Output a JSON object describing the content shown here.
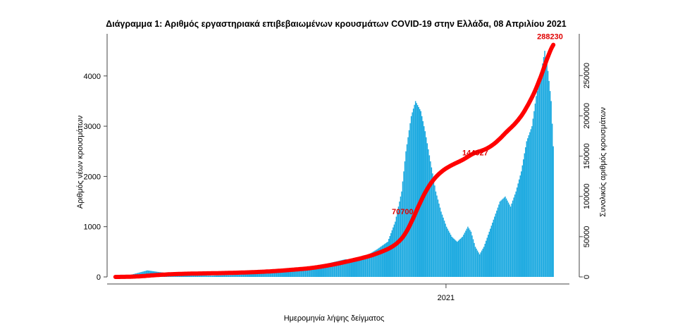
{
  "chart_data": {
    "type": "bar",
    "title": "Διάγραμμα 1: Αριθμός εργαστηριακά επιβεβαιωμένων κρουσμάτων COVID-19 στην Ελλάδα, 08 Απριλίου 2021",
    "xlabel": "Ημερομηνία λήψης δείγματος",
    "ylabel": "Αριθμός νέων κρουσμάτων",
    "y2label": "Συνολικός αριθμός κρουσμάτων",
    "x_tick_labels": [
      "2021"
    ],
    "year_tick_day": 310,
    "ylim": [
      0,
      4600
    ],
    "y2lim": [
      0,
      287000
    ],
    "yticks": [
      0,
      1000,
      2000,
      3000,
      4000
    ],
    "y2ticks": [
      0,
      50000,
      100000,
      150000,
      200000,
      250000
    ],
    "grid": false,
    "bar_color": "#1aa9e0",
    "line_color": "#ff0000",
    "daily_anchors": [
      [
        0,
        2
      ],
      [
        14,
        40
      ],
      [
        30,
        130
      ],
      [
        40,
        100
      ],
      [
        55,
        60
      ],
      [
        70,
        30
      ],
      [
        90,
        25
      ],
      [
        110,
        40
      ],
      [
        130,
        60
      ],
      [
        150,
        100
      ],
      [
        160,
        120
      ],
      [
        175,
        130
      ],
      [
        185,
        200
      ],
      [
        195,
        250
      ],
      [
        205,
        300
      ],
      [
        215,
        350
      ],
      [
        225,
        350
      ],
      [
        235,
        420
      ],
      [
        245,
        550
      ],
      [
        255,
        700
      ],
      [
        262,
        1100
      ],
      [
        268,
        1700
      ],
      [
        272,
        2500
      ],
      [
        277,
        3200
      ],
      [
        281,
        3500
      ],
      [
        286,
        3300
      ],
      [
        290,
        2900
      ],
      [
        295,
        2300
      ],
      [
        300,
        1700
      ],
      [
        305,
        1300
      ],
      [
        310,
        1000
      ],
      [
        315,
        800
      ],
      [
        320,
        700
      ],
      [
        325,
        800
      ],
      [
        330,
        1000
      ],
      [
        333,
        900
      ],
      [
        337,
        600
      ],
      [
        341,
        450
      ],
      [
        345,
        600
      ],
      [
        350,
        900
      ],
      [
        355,
        1200
      ],
      [
        360,
        1500
      ],
      [
        365,
        1600
      ],
      [
        370,
        1400
      ],
      [
        375,
        1700
      ],
      [
        380,
        2100
      ],
      [
        385,
        2700
      ],
      [
        390,
        3000
      ],
      [
        394,
        3600
      ],
      [
        398,
        4000
      ],
      [
        402,
        4500
      ],
      [
        405,
        4100
      ],
      [
        408,
        3500
      ],
      [
        410,
        2600
      ]
    ],
    "cumulative_labels": [
      {
        "day": 272,
        "value": 70700,
        "text": "70700"
      },
      {
        "day": 340,
        "value": 144027,
        "text": "144027"
      },
      {
        "day": 410,
        "value": 288230,
        "text": "288230"
      }
    ],
    "final_total": 288230
  }
}
